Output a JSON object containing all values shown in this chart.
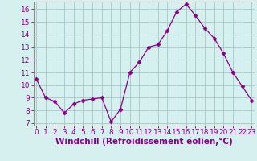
{
  "x": [
    0,
    1,
    2,
    3,
    4,
    5,
    6,
    7,
    8,
    9,
    10,
    11,
    12,
    13,
    14,
    15,
    16,
    17,
    18,
    19,
    20,
    21,
    22,
    23
  ],
  "y": [
    10.5,
    9.0,
    8.7,
    7.8,
    8.5,
    8.8,
    8.9,
    9.0,
    7.1,
    8.1,
    11.0,
    11.8,
    13.0,
    13.2,
    14.3,
    15.8,
    16.4,
    15.5,
    14.5,
    13.7,
    12.5,
    11.0,
    9.9,
    8.8
  ],
  "xlim": [
    -0.3,
    23.3
  ],
  "ylim": [
    6.8,
    16.6
  ],
  "xticks": [
    0,
    1,
    2,
    3,
    4,
    5,
    6,
    7,
    8,
    9,
    10,
    11,
    12,
    13,
    14,
    15,
    16,
    17,
    18,
    19,
    20,
    21,
    22,
    23
  ],
  "yticks": [
    7,
    8,
    9,
    10,
    11,
    12,
    13,
    14,
    15,
    16
  ],
  "xlabel": "Windchill (Refroidissement éolien,°C)",
  "line_color": "#880088",
  "marker": "D",
  "marker_size": 2.5,
  "bg_color": "#d6f0f0",
  "grid_color": "#aacccc",
  "tick_color": "#880088",
  "tick_fontsize": 6.5,
  "xlabel_fontsize": 7.5
}
